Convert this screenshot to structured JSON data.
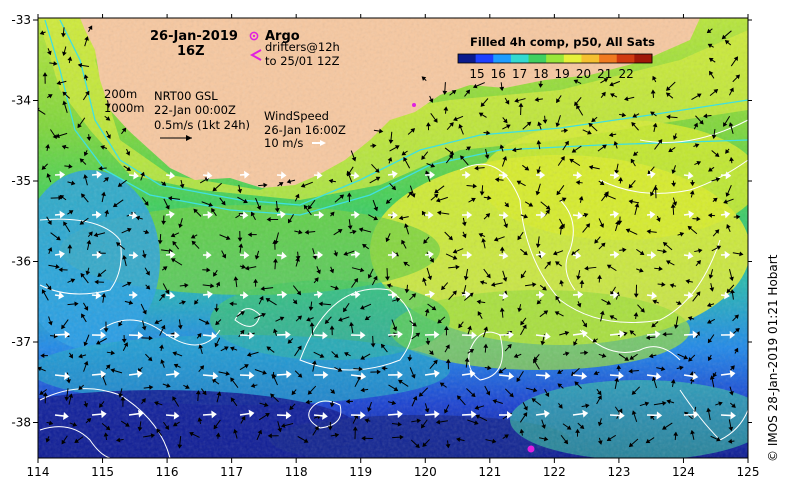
{
  "header": {
    "date": "26-Jan-2019",
    "hour": "16Z"
  },
  "legend": {
    "argo_label": "Argo",
    "drifters_line1": "drifters@12h",
    "drifters_line2": "to 25/01 12Z",
    "isobath_200": "200m",
    "isobath_1000": "1000m",
    "current_title": "NRT00 GSL",
    "current_time": "22-Jan 00:00Z",
    "current_scale": "0.5m/s (1kt 24h)",
    "wind_title": "WindSpeed",
    "wind_time": "26-Jan 16:00Z",
    "wind_scale": "10 m/s"
  },
  "colorbar": {
    "title": "Filled 4h comp, p50, All Sats",
    "labels": [
      "15",
      "16",
      "17",
      "18",
      "19",
      "20",
      "21",
      "22"
    ],
    "stops": [
      "#0a1a8c",
      "#1e40ff",
      "#1e9cff",
      "#33d9d0",
      "#40d060",
      "#9ae63a",
      "#e6f03a",
      "#f5c030",
      "#f07a20",
      "#d03a10",
      "#a01808"
    ]
  },
  "axes": {
    "x_ticks": [
      "114",
      "115",
      "116",
      "117",
      "118",
      "119",
      "120",
      "121",
      "122",
      "123",
      "124",
      "125"
    ],
    "y_ticks": [
      "-33",
      "-34",
      "-35",
      "-36",
      "-37",
      "-38"
    ]
  },
  "credit": "© IMOS 28-Jan-2019 01:21 Hobart",
  "colors": {
    "land": "#f7c8a0",
    "deep": "#10208a",
    "contour": "#ffffff",
    "isobath": "#40e0e0",
    "argo": "#e020e0"
  }
}
